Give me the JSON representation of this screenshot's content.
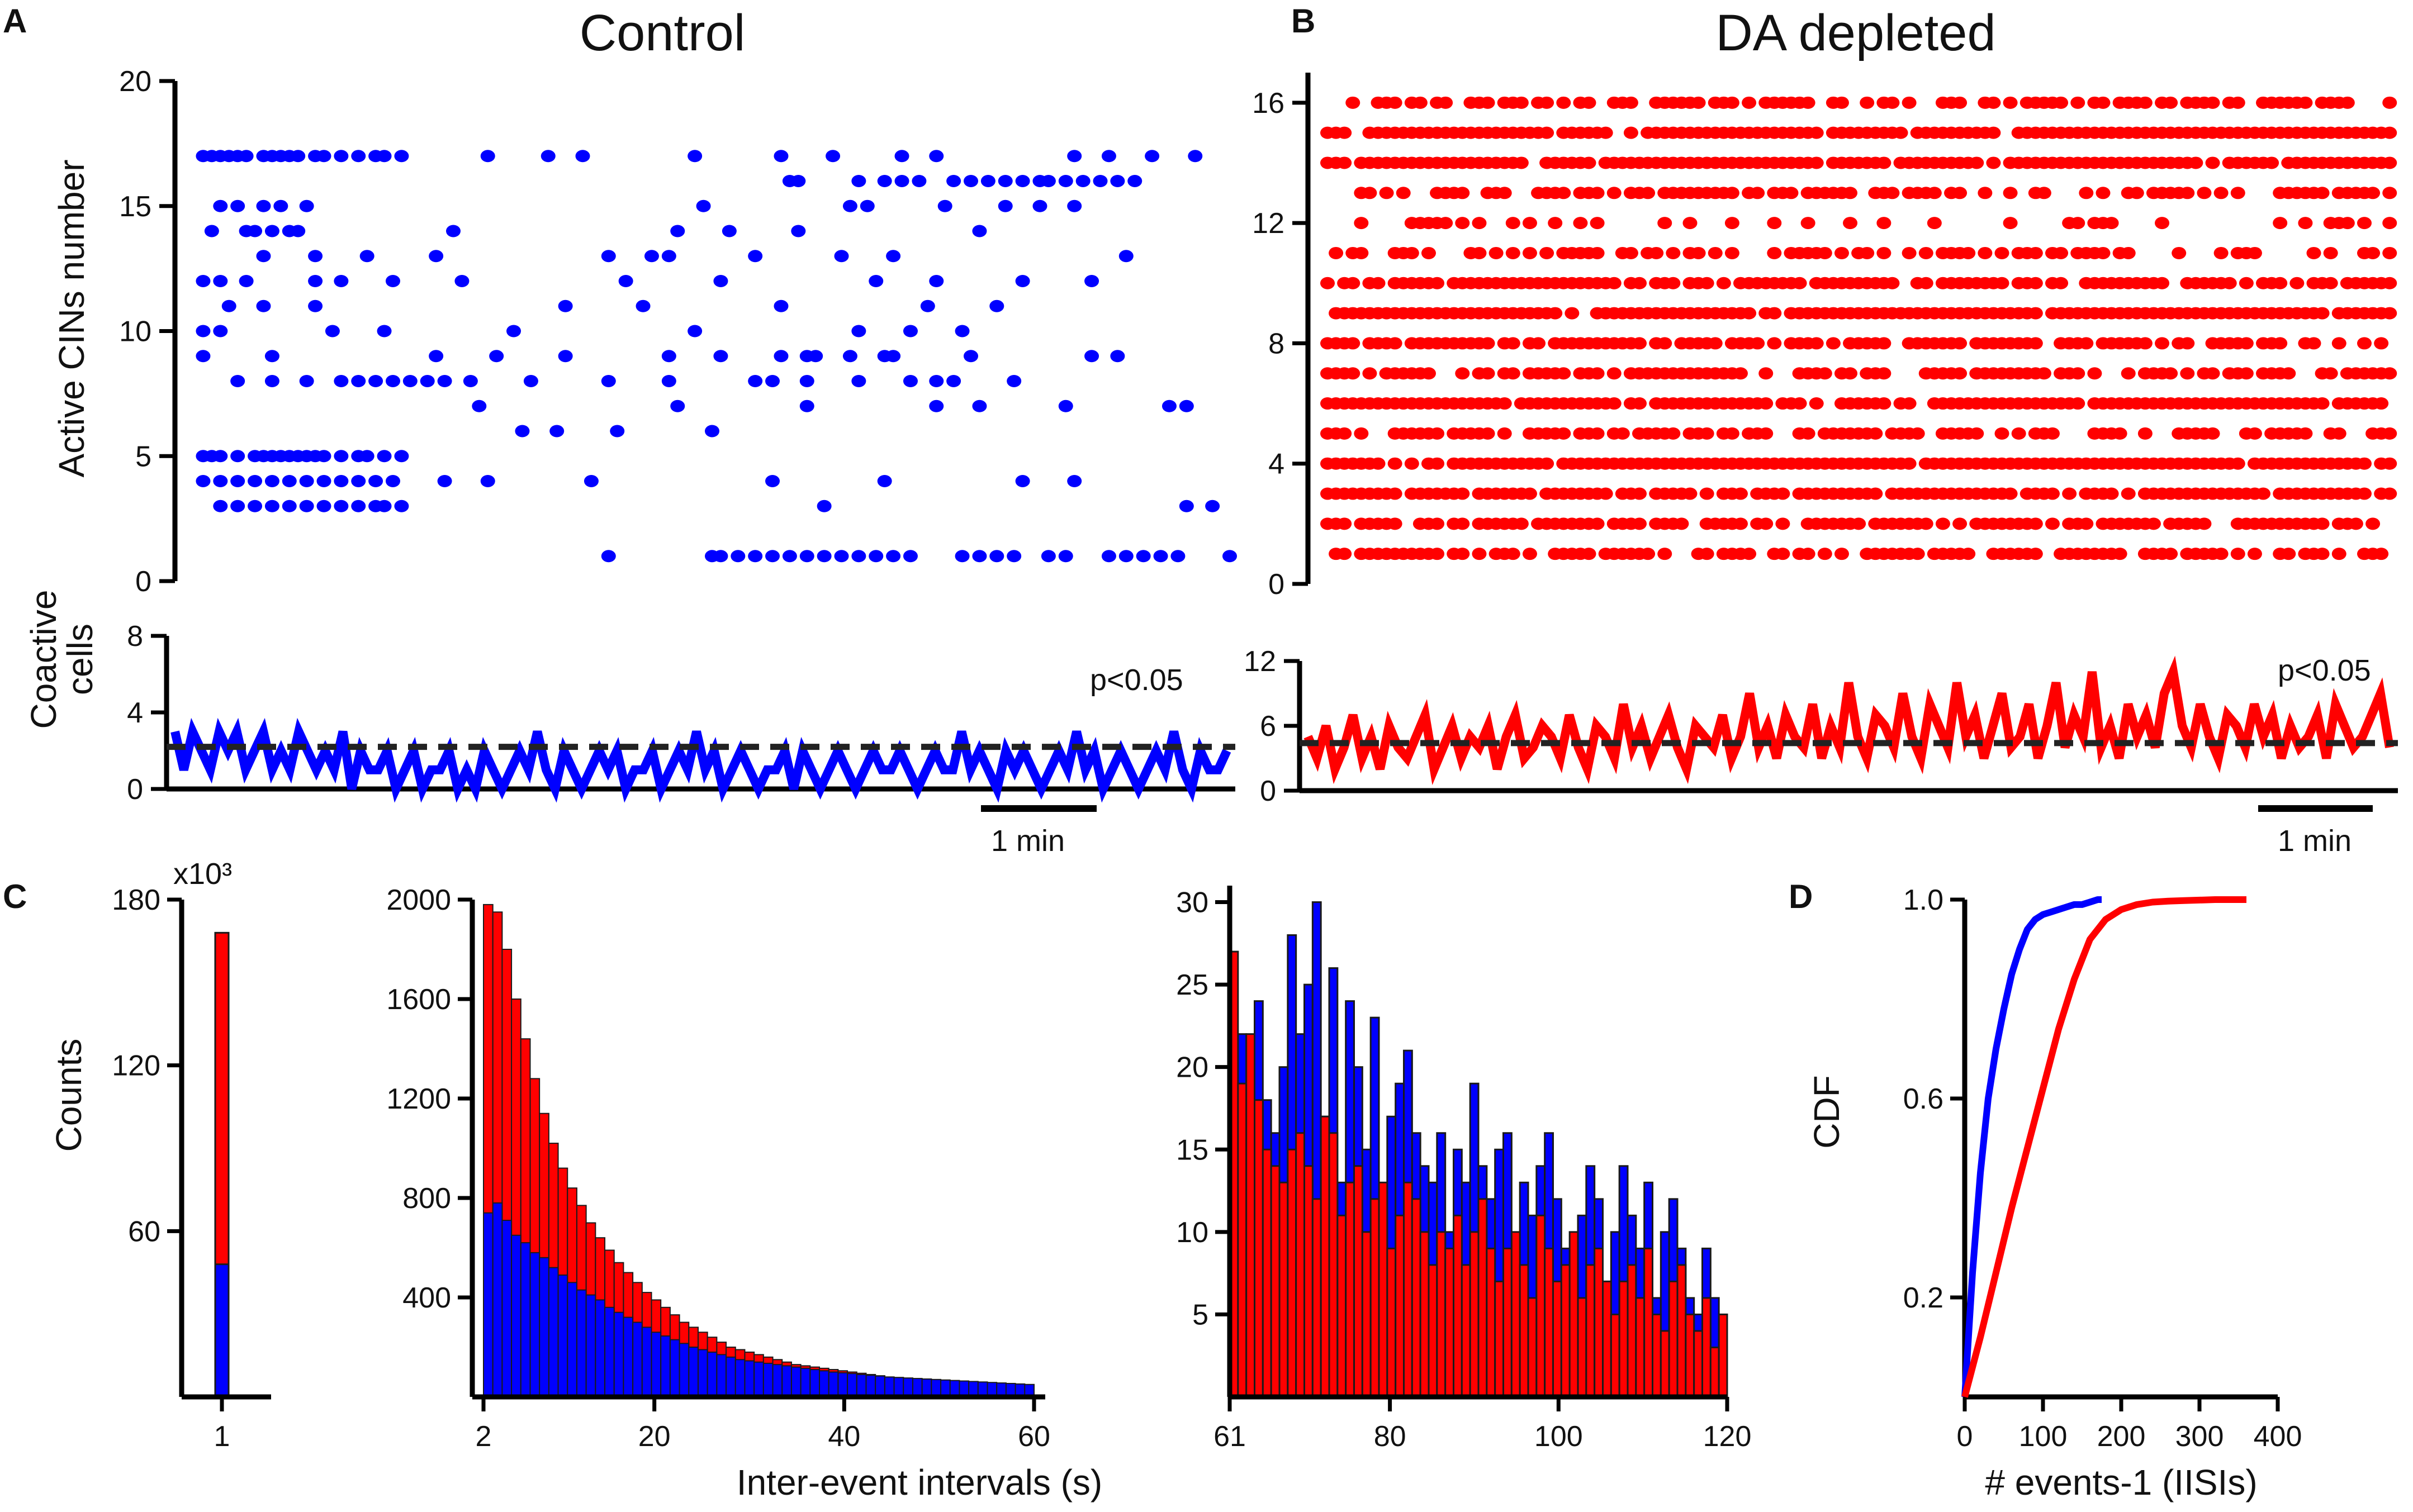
{
  "colors": {
    "control": "#0000ff",
    "depleted": "#ff0000",
    "axis": "#000000",
    "threshold": "#222222"
  },
  "panel_letters": {
    "a": "A",
    "b": "B",
    "c": "C",
    "d": "D"
  },
  "chart_data": [
    {
      "id": "A-raster",
      "type": "scatter",
      "panel": "A",
      "title": "Control",
      "ylabel": "Active CINs number",
      "yticks": [
        "0",
        "5",
        "10",
        "15",
        "20"
      ],
      "ylim": [
        0,
        20
      ],
      "xlim": [
        0,
        120
      ],
      "color": "#0000ff",
      "rows": [
        {
          "cell": 17,
          "t": [
            1,
            2,
            3,
            4,
            5,
            6,
            8,
            9,
            10,
            11,
            12,
            14,
            15,
            17,
            19,
            21,
            22,
            24,
            34,
            41,
            45,
            58,
            68,
            74,
            82,
            86,
            102,
            106,
            111,
            116
          ]
        },
        {
          "cell": 16,
          "t": [
            69,
            70,
            77,
            80,
            82,
            84,
            88,
            90,
            92,
            94,
            96,
            98,
            99,
            101,
            103,
            105,
            107,
            109
          ]
        },
        {
          "cell": 15,
          "t": [
            3,
            5,
            8,
            10,
            13,
            59,
            76,
            78,
            87,
            94,
            98,
            102
          ]
        },
        {
          "cell": 14,
          "t": [
            2,
            6,
            7,
            9,
            11,
            12,
            30,
            56,
            62,
            70,
            91
          ]
        },
        {
          "cell": 13,
          "t": [
            8,
            14,
            20,
            28,
            48,
            53,
            55,
            65,
            75,
            81,
            108
          ]
        },
        {
          "cell": 12,
          "t": [
            1,
            3,
            6,
            14,
            17,
            23,
            31,
            50,
            61,
            79,
            86,
            96,
            104
          ]
        },
        {
          "cell": 11,
          "t": [
            4,
            8,
            14,
            43,
            52,
            68,
            85,
            93
          ]
        },
        {
          "cell": 10,
          "t": [
            1,
            3,
            16,
            22,
            37,
            58,
            77,
            83,
            89
          ]
        },
        {
          "cell": 9,
          "t": [
            1,
            9,
            28,
            35,
            43,
            55,
            61,
            68,
            71,
            72,
            76,
            80,
            81,
            90,
            104,
            107
          ]
        },
        {
          "cell": 8,
          "t": [
            5,
            9,
            13,
            17,
            19,
            21,
            23,
            25,
            27,
            29,
            32,
            39,
            48,
            55,
            65,
            67,
            71,
            77,
            83,
            86,
            88,
            95
          ]
        },
        {
          "cell": 7,
          "t": [
            33,
            56,
            71,
            86,
            91,
            101,
            113,
            115
          ]
        },
        {
          "cell": 6,
          "t": [
            38,
            42,
            49,
            60
          ]
        },
        {
          "cell": 5,
          "t": [
            1,
            2,
            3,
            5,
            7,
            8,
            9,
            10,
            11,
            12,
            13,
            14,
            15,
            17,
            19,
            20,
            22,
            24
          ]
        },
        {
          "cell": 4,
          "t": [
            1,
            3,
            5,
            7,
            9,
            11,
            13,
            15,
            17,
            19,
            21,
            23,
            29,
            34,
            46,
            67,
            80,
            96,
            102
          ]
        },
        {
          "cell": 3,
          "t": [
            3,
            5,
            7,
            9,
            11,
            13,
            15,
            17,
            19,
            21,
            22,
            24,
            73,
            115,
            118
          ]
        },
        {
          "cell": 1,
          "t": [
            48,
            60,
            61,
            63,
            65,
            67,
            69,
            71,
            73,
            75,
            77,
            79,
            81,
            83,
            89,
            91,
            93,
            95,
            99,
            101,
            106,
            108,
            110,
            112,
            114,
            120
          ]
        }
      ]
    },
    {
      "id": "B-raster",
      "type": "scatter",
      "panel": "B",
      "title": "DA depleted",
      "yticks": [
        "0",
        "4",
        "8",
        "12",
        "16"
      ],
      "ylim": [
        0,
        17
      ],
      "xlim": [
        0,
        120
      ],
      "color": "#ff0000",
      "rows": [
        {
          "cell": 16,
          "row_density": 0.72
        },
        {
          "cell": 15,
          "row_density": 0.92
        },
        {
          "cell": 14,
          "row_density": 0.9
        },
        {
          "cell": 13,
          "row_density": 0.55
        },
        {
          "cell": 12,
          "row_density": 0.3
        },
        {
          "cell": 11,
          "row_density": 0.45
        },
        {
          "cell": 10,
          "row_density": 0.85
        },
        {
          "cell": 9,
          "row_density": 0.93
        },
        {
          "cell": 8,
          "row_density": 0.8
        },
        {
          "cell": 7,
          "row_density": 0.7
        },
        {
          "cell": 6,
          "row_density": 0.88
        },
        {
          "cell": 5,
          "row_density": 0.6
        },
        {
          "cell": 4,
          "row_density": 0.92
        },
        {
          "cell": 3,
          "row_density": 0.9
        },
        {
          "cell": 2,
          "row_density": 0.8
        },
        {
          "cell": 1,
          "row_density": 0.75
        }
      ]
    },
    {
      "id": "A-coactive",
      "type": "line",
      "panel": "A",
      "ylabel_line1": "Coactive",
      "ylabel_line2": "cells",
      "yticks": [
        "0",
        "4",
        "8"
      ],
      "ylim": [
        0,
        8
      ],
      "xlim": [
        0,
        120
      ],
      "threshold": 2.2,
      "significance": "p<0.05",
      "scalebar_label": "1 min",
      "color": "#0000ff",
      "values": [
        3,
        1,
        3,
        2,
        1,
        3,
        2,
        3,
        1,
        2,
        3,
        1,
        2,
        1,
        3,
        2,
        1,
        2,
        1,
        3,
        0,
        2,
        1,
        1,
        2,
        0,
        1,
        2,
        0,
        1,
        1,
        2,
        0,
        1,
        0,
        2,
        1,
        0,
        1,
        2,
        1,
        3,
        1,
        0,
        2,
        1,
        0,
        1,
        2,
        1,
        2,
        0,
        1,
        1,
        2,
        0,
        1,
        2,
        1,
        3,
        1,
        2,
        0,
        1,
        2,
        1,
        0,
        1,
        1,
        2,
        0,
        2,
        1,
        0,
        1,
        2,
        1,
        0,
        1,
        2,
        1,
        1,
        2,
        1,
        0,
        1,
        2,
        1,
        1,
        3,
        1,
        2,
        1,
        0,
        2,
        1,
        2,
        1,
        0,
        1,
        2,
        1,
        3,
        1,
        2,
        0,
        1,
        2,
        1,
        0,
        1,
        2,
        1,
        3,
        1,
        0,
        2,
        1,
        1,
        2
      ]
    },
    {
      "id": "B-coactive",
      "type": "line",
      "panel": "B",
      "yticks": [
        "0",
        "6",
        "12"
      ],
      "ylim": [
        0,
        12
      ],
      "xlim": [
        0,
        120
      ],
      "threshold": 4.4,
      "significance": "p<0.05",
      "scalebar_label": "1 min",
      "color": "#ff0000",
      "values": [
        5,
        3,
        6,
        2,
        4,
        7,
        3,
        5,
        2,
        6,
        4,
        3,
        5,
        7,
        2,
        4,
        6,
        3,
        5,
        4,
        6,
        2,
        5,
        7,
        3,
        4,
        6,
        5,
        3,
        7,
        4,
        2,
        6,
        5,
        3,
        8,
        4,
        6,
        3,
        5,
        7,
        4,
        2,
        6,
        5,
        4,
        7,
        3,
        5,
        9,
        4,
        6,
        3,
        7,
        5,
        4,
        8,
        3,
        6,
        4,
        10,
        5,
        3,
        7,
        6,
        4,
        9,
        5,
        3,
        8,
        6,
        4,
        10,
        5,
        7,
        3,
        6,
        9,
        4,
        5,
        8,
        3,
        6,
        10,
        4,
        7,
        5,
        11,
        4,
        6,
        3,
        8,
        5,
        7,
        4,
        9,
        11,
        6,
        4,
        8,
        5,
        3,
        7,
        6,
        4,
        8,
        5,
        7,
        3,
        6,
        4,
        5,
        7,
        3,
        8,
        6,
        4,
        5,
        7,
        9,
        4
      ]
    },
    {
      "id": "C-first-bin",
      "type": "bar",
      "panel": "C",
      "ylabel": "Counts",
      "yunit": "x10³",
      "yticks": [
        "60",
        "120",
        "180"
      ],
      "ylim": [
        0,
        180
      ],
      "categories": [
        "1"
      ],
      "series": [
        {
          "name": "DA depleted",
          "color": "#ff0000",
          "values": [
            168
          ]
        },
        {
          "name": "Control",
          "color": "#0000ff",
          "values": [
            48
          ]
        }
      ]
    },
    {
      "id": "C-short-intervals",
      "type": "bar",
      "panel": "C",
      "xlabel": "Inter-event intervals (s)",
      "xticks": [
        "2",
        "20",
        "40",
        "60"
      ],
      "xlim": [
        2,
        60
      ],
      "yticks": [
        "400",
        "800",
        "1200",
        "1600",
        "2000"
      ],
      "ylim": [
        0,
        2000
      ],
      "series": [
        {
          "name": "DA depleted",
          "color": "#ff0000",
          "values": [
            1980,
            1950,
            1800,
            1600,
            1440,
            1280,
            1140,
            1020,
            920,
            840,
            770,
            700,
            640,
            590,
            540,
            500,
            460,
            420,
            390,
            360,
            330,
            300,
            280,
            260,
            240,
            220,
            200,
            190,
            180,
            170,
            160,
            150,
            140,
            130,
            125,
            120,
            115,
            110,
            105,
            100,
            95,
            90,
            85,
            80,
            78,
            75,
            72,
            70,
            68,
            65,
            62,
            60,
            58,
            56,
            55,
            54,
            52,
            50,
            48
          ]
        },
        {
          "name": "Control",
          "color": "#0000ff",
          "values": [
            740,
            780,
            710,
            650,
            620,
            580,
            560,
            520,
            490,
            460,
            430,
            410,
            390,
            360,
            340,
            320,
            300,
            280,
            260,
            245,
            230,
            215,
            200,
            190,
            180,
            170,
            160,
            150,
            145,
            140,
            135,
            130,
            125,
            120,
            115,
            110,
            105,
            100,
            97,
            94,
            90,
            87,
            84,
            80,
            78,
            76,
            74,
            72,
            70,
            68,
            66,
            64,
            62,
            60,
            58,
            56,
            54,
            52,
            50
          ]
        }
      ]
    },
    {
      "id": "C-long-intervals",
      "type": "bar",
      "panel": "C",
      "xticks": [
        "61",
        "80",
        "100",
        "120"
      ],
      "xlim": [
        61,
        120
      ],
      "yticks": [
        "5",
        "10",
        "15",
        "20",
        "25",
        "30"
      ],
      "ylim": [
        0,
        31
      ],
      "series": [
        {
          "name": "Control",
          "color": "#0000ff",
          "values": [
            14,
            22,
            17,
            24,
            18,
            16,
            20,
            28,
            22,
            25,
            30,
            17,
            26,
            13,
            24,
            20,
            15,
            23,
            12,
            17,
            19,
            21,
            16,
            14,
            13,
            16,
            10,
            15,
            13,
            19,
            14,
            12,
            15,
            16,
            9,
            13,
            11,
            14,
            16,
            12,
            9,
            8,
            11,
            14,
            12,
            7,
            10,
            14,
            11,
            9,
            13,
            6,
            10,
            12,
            9,
            6,
            5,
            9,
            6,
            5
          ]
        },
        {
          "name": "DA depleted",
          "color": "#ff0000",
          "values": [
            27,
            19,
            22,
            18,
            15,
            14,
            13,
            15,
            16,
            14,
            12,
            17,
            16,
            11,
            13,
            14,
            10,
            12,
            13,
            9,
            11,
            13,
            12,
            10,
            8,
            10,
            9,
            11,
            8,
            10,
            12,
            9,
            7,
            9,
            10,
            8,
            6,
            11,
            9,
            7,
            8,
            10,
            6,
            8,
            9,
            7,
            5,
            7,
            8,
            6,
            9,
            5,
            4,
            7,
            8,
            5,
            4,
            6,
            3,
            5
          ]
        }
      ]
    },
    {
      "id": "D-cdf",
      "type": "line",
      "panel": "D",
      "ylabel": "CDF",
      "xlabel": "# events-1 (IISIs)",
      "yticks": [
        "0.2",
        "0.6",
        "1.0"
      ],
      "ylim": [
        0,
        1.0
      ],
      "xticks": [
        "0",
        "100",
        "200",
        "300",
        "400"
      ],
      "xlim": [
        0,
        400
      ],
      "series": [
        {
          "name": "Control",
          "color": "#0000ff",
          "x": [
            0,
            10,
            20,
            30,
            40,
            50,
            60,
            70,
            80,
            90,
            100,
            110,
            120,
            130,
            140,
            150,
            160,
            170,
            175
          ],
          "y": [
            0,
            0.25,
            0.45,
            0.6,
            0.7,
            0.78,
            0.85,
            0.9,
            0.94,
            0.96,
            0.97,
            0.975,
            0.98,
            0.985,
            0.99,
            0.99,
            0.995,
            1.0,
            1.0
          ]
        },
        {
          "name": "DA depleted",
          "color": "#ff0000",
          "x": [
            0,
            20,
            40,
            60,
            80,
            100,
            120,
            140,
            160,
            180,
            200,
            220,
            240,
            260,
            280,
            300,
            320,
            340,
            360
          ],
          "y": [
            0,
            0.12,
            0.25,
            0.38,
            0.5,
            0.62,
            0.74,
            0.84,
            0.92,
            0.96,
            0.98,
            0.99,
            0.995,
            0.997,
            0.998,
            0.999,
            1.0,
            1.0,
            1.0
          ]
        }
      ]
    }
  ]
}
